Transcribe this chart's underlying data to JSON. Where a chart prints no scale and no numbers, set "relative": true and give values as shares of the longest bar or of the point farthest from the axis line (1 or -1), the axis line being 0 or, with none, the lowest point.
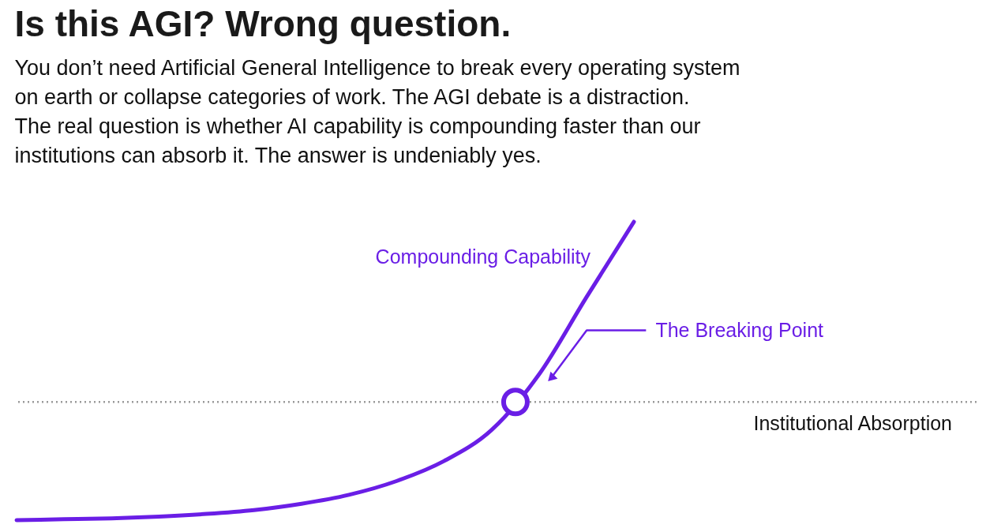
{
  "chart_data": {
    "type": "line",
    "title": "Is this AGI? Wrong question.",
    "subtitle": "You don’t need Artificial General Intelligence to break every operating system\non earth or collapse categories of work. The AGI debate is a distraction.\n\nThe real question is whether AI capability is compounding faster than our\ninstitutions can absorb it. The answer is undeniably yes.",
    "categories": [
      null,
      null,
      null,
      null,
      null,
      null,
      null,
      null,
      null,
      null,
      null,
      null,
      null,
      null
    ],
    "relative": true,
    "series": [
      {
        "name": "Compounding Capability",
        "color": "#6a1ee6",
        "values": [
          0,
          0.003,
          0.006,
          0.012,
          0.021,
          0.034,
          0.055,
          0.085,
          0.131,
          0.198,
          0.302,
          0.488,
          0.747,
          1
        ]
      }
    ],
    "ref_lines": [
      {
        "axis": "y",
        "value": 0.396,
        "label": "Institutional Absorption",
        "color": "#9a9a9a",
        "line_style": "dotted"
      }
    ],
    "annotations": [
      "The Breaking Point"
    ]
  }
}
